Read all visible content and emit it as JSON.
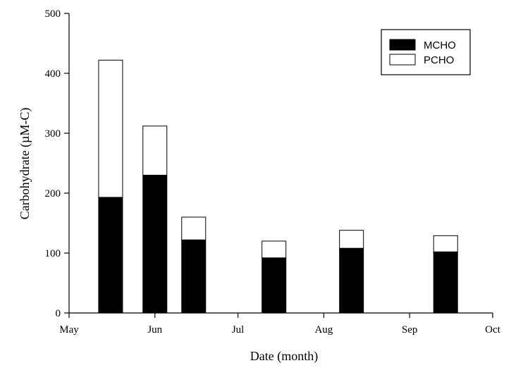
{
  "chart_data": {
    "type": "bar",
    "stacked": true,
    "xlabel": "Date (month)",
    "ylabel": "Carbohydrate (µM-C)",
    "x_axis_type": "date",
    "xlim": [
      "2000-05-01",
      "2000-10-01"
    ],
    "x_ticks": [
      {
        "date": "2000-05-01",
        "label": "May"
      },
      {
        "date": "2000-06-01",
        "label": "Jun"
      },
      {
        "date": "2000-07-01",
        "label": "Jul"
      },
      {
        "date": "2000-08-01",
        "label": "Aug"
      },
      {
        "date": "2000-09-01",
        "label": "Sep"
      },
      {
        "date": "2000-10-01",
        "label": "Oct"
      }
    ],
    "ylim": [
      0,
      500
    ],
    "y_ticks": [
      0,
      100,
      200,
      300,
      400,
      500
    ],
    "legend_position": "top-right",
    "x": [
      "2000-05-16",
      "2000-06-01",
      "2000-06-15",
      "2000-07-14",
      "2000-08-11",
      "2000-09-14"
    ],
    "series": [
      {
        "name": "MCHO",
        "color": "#000000",
        "values": [
          193,
          230,
          122,
          92,
          108,
          102
        ]
      },
      {
        "name": "PCHO",
        "color": "#ffffff",
        "values": [
          229,
          82,
          38,
          28,
          30,
          27
        ]
      }
    ]
  }
}
